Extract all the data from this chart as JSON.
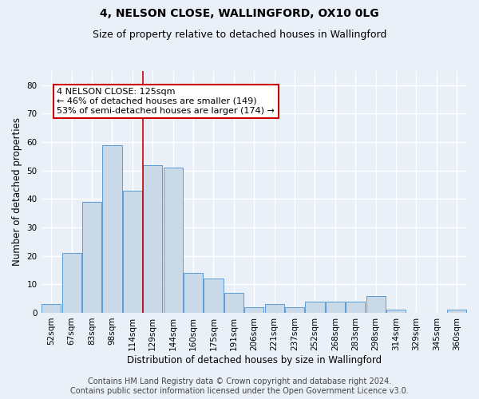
{
  "title1": "4, NELSON CLOSE, WALLINGFORD, OX10 0LG",
  "title2": "Size of property relative to detached houses in Wallingford",
  "xlabel": "Distribution of detached houses by size in Wallingford",
  "ylabel": "Number of detached properties",
  "categories": [
    "52sqm",
    "67sqm",
    "83sqm",
    "98sqm",
    "114sqm",
    "129sqm",
    "144sqm",
    "160sqm",
    "175sqm",
    "191sqm",
    "206sqm",
    "221sqm",
    "237sqm",
    "252sqm",
    "268sqm",
    "283sqm",
    "298sqm",
    "314sqm",
    "329sqm",
    "345sqm",
    "360sqm"
  ],
  "values": [
    3,
    21,
    39,
    59,
    43,
    52,
    51,
    14,
    12,
    7,
    2,
    3,
    2,
    4,
    4,
    4,
    6,
    1,
    0,
    0,
    1
  ],
  "bar_color": "#c9d9e8",
  "bar_edge_color": "#5b9bd5",
  "annotation_line1": "4 NELSON CLOSE: 125sqm",
  "annotation_line2": "← 46% of detached houses are smaller (149)",
  "annotation_line3": "53% of semi-detached houses are larger (174) →",
  "annotation_box_color": "#ffffff",
  "annotation_box_edge": "#cc0000",
  "vline_color": "#cc0000",
  "footer1": "Contains HM Land Registry data © Crown copyright and database right 2024.",
  "footer2": "Contains public sector information licensed under the Open Government Licence v3.0.",
  "ylim": [
    0,
    85
  ],
  "yticks": [
    0,
    10,
    20,
    30,
    40,
    50,
    60,
    70,
    80
  ],
  "background_color": "#eaf0f8",
  "grid_color": "#ffffff",
  "title_fontsize": 10,
  "subtitle_fontsize": 9,
  "axis_label_fontsize": 8.5,
  "tick_fontsize": 7.5,
  "footer_fontsize": 7,
  "annot_fontsize": 8
}
